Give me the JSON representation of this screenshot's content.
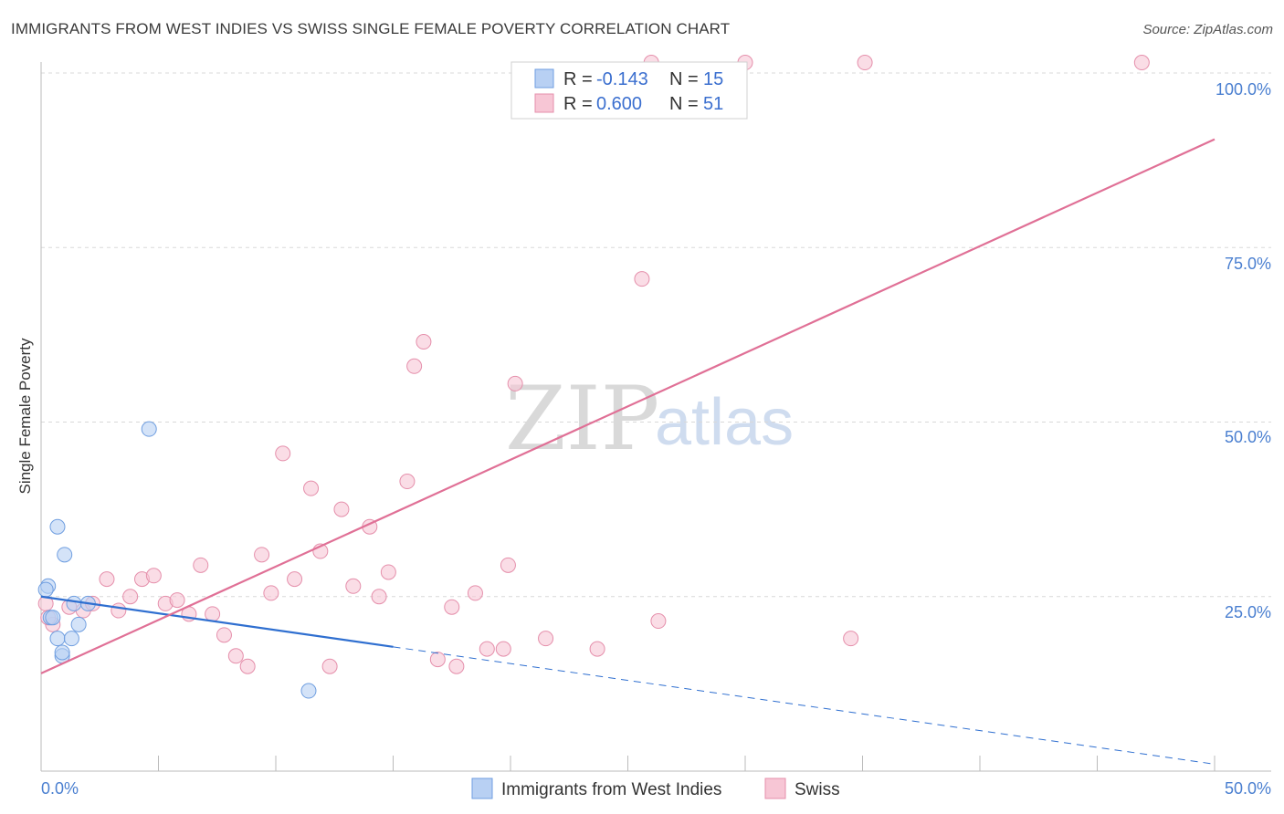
{
  "header": {
    "title": "IMMIGRANTS FROM WEST INDIES VS SWISS SINGLE FEMALE POVERTY CORRELATION CHART",
    "source": "Source: ZipAtlas.com"
  },
  "watermark": {
    "zip": "ZIP",
    "atlas": "atlas"
  },
  "colors": {
    "blue_fill": "#b8d0f3",
    "blue_stroke": "#6f9ee0",
    "blue_line": "#2f6fd0",
    "pink_fill": "#f7c6d5",
    "pink_stroke": "#e58fab",
    "pink_line": "#e07096",
    "tick_text": "#4a7fd0",
    "grid": "#d9d9d9"
  },
  "legend": {
    "rows": [
      {
        "r_label": "R = ",
        "r_value": "-0.143",
        "n_label": "N = ",
        "n_value": "15"
      },
      {
        "r_label": "R = ",
        "r_value": "0.600",
        "n_label": "N = ",
        "n_value": "51"
      }
    ]
  },
  "chart_data": {
    "type": "scatter",
    "title": "IMMIGRANTS FROM WEST INDIES VS SWISS SINGLE FEMALE POVERTY CORRELATION CHART",
    "xlabel": "",
    "ylabel": "Single Female Poverty",
    "xlim": [
      0,
      50
    ],
    "ylim": [
      0,
      100
    ],
    "x_tick_labels": [
      "0.0%",
      "50.0%"
    ],
    "y_tick_labels": [
      "100.0%",
      "75.0%",
      "50.0%",
      "25.0%"
    ],
    "y_ticks": [
      100,
      75,
      50,
      25
    ],
    "grid": true,
    "legend_position": "bottom",
    "series": [
      {
        "name": "Immigrants from West Indies",
        "color": "#6f9ee0",
        "r": -0.143,
        "n": 15,
        "points": [
          {
            "x": 0.3,
            "y": 26.5
          },
          {
            "x": 0.4,
            "y": 22.0
          },
          {
            "x": 0.5,
            "y": 22.0
          },
          {
            "x": 0.7,
            "y": 19.0
          },
          {
            "x": 0.7,
            "y": 35.0
          },
          {
            "x": 0.9,
            "y": 16.5
          },
          {
            "x": 1.0,
            "y": 31.0
          },
          {
            "x": 0.9,
            "y": 17.0
          },
          {
            "x": 1.3,
            "y": 19.0
          },
          {
            "x": 1.4,
            "y": 24.0
          },
          {
            "x": 1.6,
            "y": 21.0
          },
          {
            "x": 2.0,
            "y": 24.0
          },
          {
            "x": 4.6,
            "y": 49.0
          },
          {
            "x": 11.4,
            "y": 11.5
          },
          {
            "x": 0.2,
            "y": 26.0
          }
        ],
        "trend": {
          "x0": 0,
          "y0": 25.0,
          "x_solid_end": 15.0,
          "x1": 50,
          "y1": 1.0
        }
      },
      {
        "name": "Swiss",
        "color": "#e58fab",
        "r": 0.6,
        "n": 51,
        "points": [
          {
            "x": 0.2,
            "y": 24.0
          },
          {
            "x": 0.5,
            "y": 21.0
          },
          {
            "x": 1.2,
            "y": 23.5
          },
          {
            "x": 1.8,
            "y": 23.0
          },
          {
            "x": 2.2,
            "y": 24.0
          },
          {
            "x": 2.8,
            "y": 27.5
          },
          {
            "x": 3.3,
            "y": 23.0
          },
          {
            "x": 3.8,
            "y": 25.0
          },
          {
            "x": 4.3,
            "y": 27.5
          },
          {
            "x": 4.8,
            "y": 28.0
          },
          {
            "x": 5.3,
            "y": 24.0
          },
          {
            "x": 5.8,
            "y": 24.5
          },
          {
            "x": 6.3,
            "y": 22.5
          },
          {
            "x": 6.8,
            "y": 29.5
          },
          {
            "x": 7.3,
            "y": 22.5
          },
          {
            "x": 7.8,
            "y": 19.5
          },
          {
            "x": 8.3,
            "y": 16.5
          },
          {
            "x": 8.8,
            "y": 15.0
          },
          {
            "x": 9.4,
            "y": 31.0
          },
          {
            "x": 9.8,
            "y": 25.5
          },
          {
            "x": 10.3,
            "y": 45.5
          },
          {
            "x": 10.8,
            "y": 27.5
          },
          {
            "x": 11.5,
            "y": 40.5
          },
          {
            "x": 11.9,
            "y": 31.5
          },
          {
            "x": 12.3,
            "y": 15.0
          },
          {
            "x": 12.8,
            "y": 37.5
          },
          {
            "x": 13.3,
            "y": 26.5
          },
          {
            "x": 14.0,
            "y": 35.0
          },
          {
            "x": 14.4,
            "y": 25.0
          },
          {
            "x": 14.8,
            "y": 28.5
          },
          {
            "x": 15.6,
            "y": 41.5
          },
          {
            "x": 15.9,
            "y": 58.0
          },
          {
            "x": 16.3,
            "y": 61.5
          },
          {
            "x": 16.9,
            "y": 16.0
          },
          {
            "x": 17.5,
            "y": 23.5
          },
          {
            "x": 17.7,
            "y": 15.0
          },
          {
            "x": 18.5,
            "y": 25.5
          },
          {
            "x": 19.0,
            "y": 17.5
          },
          {
            "x": 19.7,
            "y": 17.5
          },
          {
            "x": 19.9,
            "y": 29.5
          },
          {
            "x": 20.2,
            "y": 55.5
          },
          {
            "x": 21.5,
            "y": 19.0
          },
          {
            "x": 23.7,
            "y": 17.5
          },
          {
            "x": 25.6,
            "y": 70.5
          },
          {
            "x": 26.3,
            "y": 21.5
          },
          {
            "x": 30.0,
            "y": 102.0
          },
          {
            "x": 34.5,
            "y": 19.0
          },
          {
            "x": 35.1,
            "y": 102.0
          },
          {
            "x": 46.9,
            "y": 102.0
          },
          {
            "x": 26.0,
            "y": 102.0
          },
          {
            "x": 0.3,
            "y": 22.0
          }
        ],
        "trend": {
          "x0": 0,
          "y0": 14.0,
          "x1": 50,
          "y1": 90.5
        }
      }
    ]
  }
}
